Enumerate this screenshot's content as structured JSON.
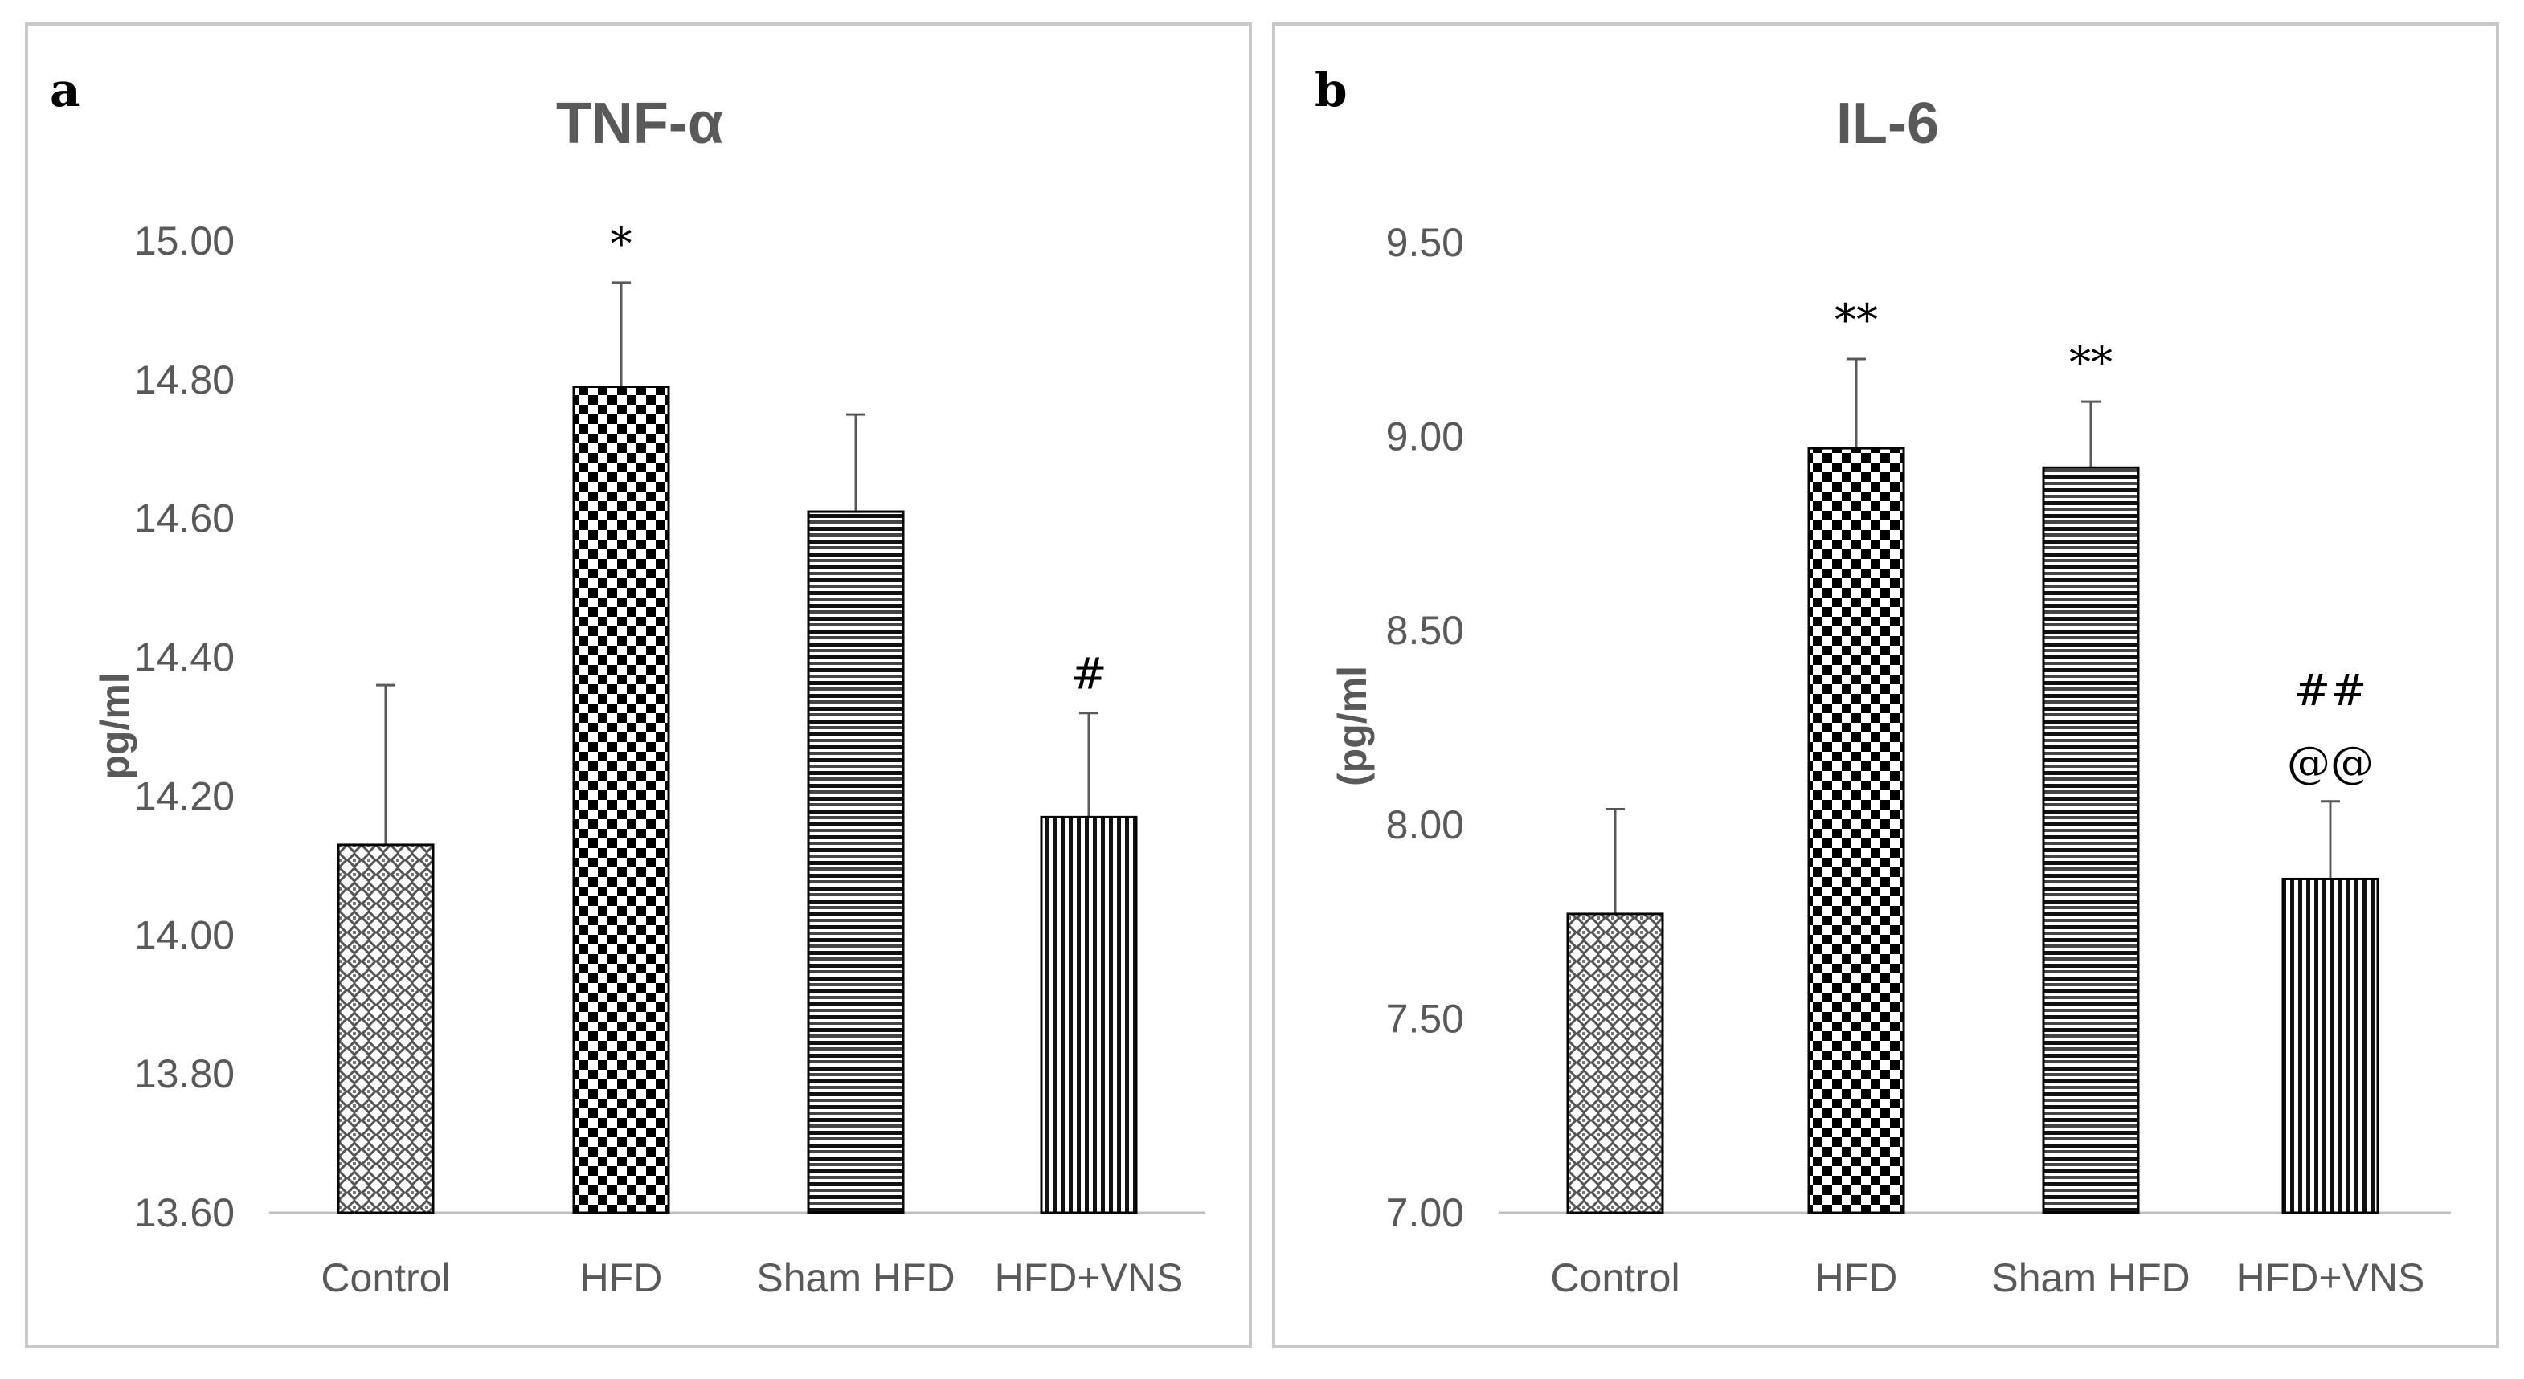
{
  "chart_data": [
    {
      "type": "bar",
      "panel_label": "a",
      "title": "TNF-α",
      "xlabel": "",
      "ylabel": "pg/ml",
      "ylim": [
        13.6,
        15.0
      ],
      "ytick_step": 0.2,
      "ytick_labels": [
        "13.60",
        "13.80",
        "14.00",
        "14.20",
        "14.40",
        "14.60",
        "14.80",
        "15.00"
      ],
      "categories": [
        "Control",
        "HFD",
        "Sham HFD",
        "HFD+VNS"
      ],
      "values": [
        14.13,
        14.79,
        14.61,
        14.17
      ],
      "errors": [
        0.23,
        0.15,
        0.14,
        0.15
      ],
      "patterns": [
        "diamond",
        "checker",
        "hstripe",
        "vstripe"
      ],
      "annotations": [
        [],
        [
          "*"
        ],
        [],
        [
          "#"
        ]
      ]
    },
    {
      "type": "bar",
      "panel_label": "b",
      "title": "IL-6",
      "xlabel": "",
      "ylabel": "(pg/ml",
      "ylim": [
        7.0,
        9.5
      ],
      "ytick_step": 0.5,
      "ytick_labels": [
        "7.00",
        "7.50",
        "8.00",
        "8.50",
        "9.00",
        "9.50"
      ],
      "categories": [
        "Control",
        "HFD",
        "Sham HFD",
        "HFD+VNS"
      ],
      "values": [
        7.77,
        8.97,
        8.92,
        7.86
      ],
      "errors": [
        0.27,
        0.23,
        0.17,
        0.2
      ],
      "patterns": [
        "diamond",
        "checker",
        "hstripe",
        "vstripe"
      ],
      "annotations": [
        [],
        [
          "**"
        ],
        [
          "**"
        ],
        [
          "##",
          "@@"
        ]
      ]
    }
  ]
}
